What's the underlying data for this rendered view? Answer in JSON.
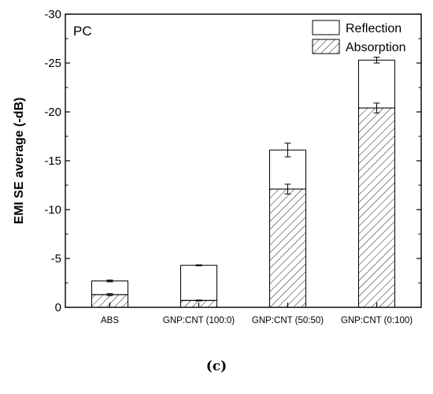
{
  "figure": {
    "caption": "(c)"
  },
  "chart_data": {
    "type": "bar",
    "stacked": true,
    "panel_label": "PC",
    "categories": [
      "ABS",
      "GNP:CNT (100:0)",
      "GNP:CNT (50:50)",
      "GNP:CNT (0:100)"
    ],
    "series": [
      {
        "name": "Absorption",
        "fill": "hatched",
        "values": [
          -1.3,
          -0.7,
          -12.1,
          -20.4
        ],
        "error": [
          0.1,
          0.05,
          0.5,
          0.5
        ]
      },
      {
        "name": "Reflection",
        "fill": "white",
        "values": [
          -1.4,
          -3.6,
          -4.0,
          -4.9
        ],
        "error": [
          0.1,
          0.05,
          0.7,
          0.3
        ]
      }
    ],
    "totals": [
      -2.7,
      -4.3,
      -16.1,
      -25.3
    ],
    "xlabel": "",
    "ylabel": "EMI SE average (-dB)",
    "ylim": [
      0,
      -30
    ],
    "yticks": [
      0,
      -5,
      -10,
      -15,
      -20,
      -25,
      -30
    ],
    "ytick_labels": [
      "0",
      "-5",
      "-10",
      "-15",
      "-20",
      "-25",
      "-30"
    ],
    "legend": {
      "position": "top-right",
      "order": [
        "Reflection",
        "Absorption"
      ]
    },
    "grid": false,
    "colors": {
      "axis": "#000000",
      "bar_edge": "#000000",
      "hatch": "#000000",
      "background": "#ffffff"
    }
  }
}
